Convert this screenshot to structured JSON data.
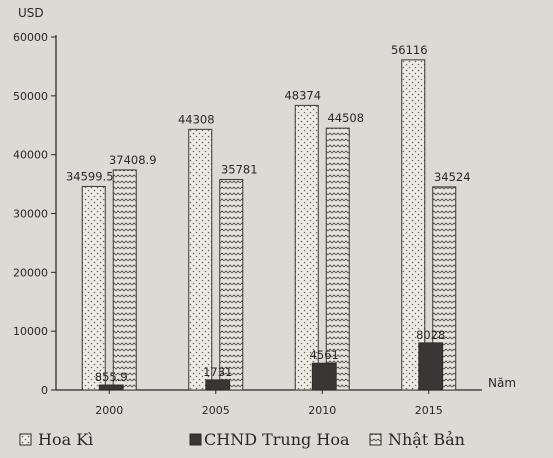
{
  "chart_data": {
    "type": "bar",
    "title": "",
    "ylabel": "USD",
    "xlabel": "Năm",
    "ylim": [
      0,
      60000
    ],
    "yticks": [
      0,
      10000,
      20000,
      30000,
      40000,
      50000,
      60000
    ],
    "categories": [
      "2000",
      "2005",
      "2010",
      "2015"
    ],
    "series": [
      {
        "name": "Hoa Kì",
        "values": [
          34599.5,
          44308,
          48374,
          56116
        ],
        "labels": [
          "34599.5",
          "44308",
          "48374",
          "56116"
        ],
        "pattern": "dots",
        "color": "#ece9e2"
      },
      {
        "name": "CHND Trung Hoa",
        "values": [
          855.9,
          1731,
          4561,
          8028
        ],
        "labels": [
          "855.9",
          "1731",
          "4561",
          "8028"
        ],
        "pattern": "solid",
        "color": "#3a3634"
      },
      {
        "name": "Nhật Bản",
        "values": [
          37408.9,
          35781,
          44508,
          34524
        ],
        "labels": [
          "37408.9",
          "35781",
          "44508",
          "34524"
        ],
        "pattern": "waves",
        "color": "#e4e1da"
      }
    ],
    "grid": false,
    "legend_position": "bottom"
  }
}
